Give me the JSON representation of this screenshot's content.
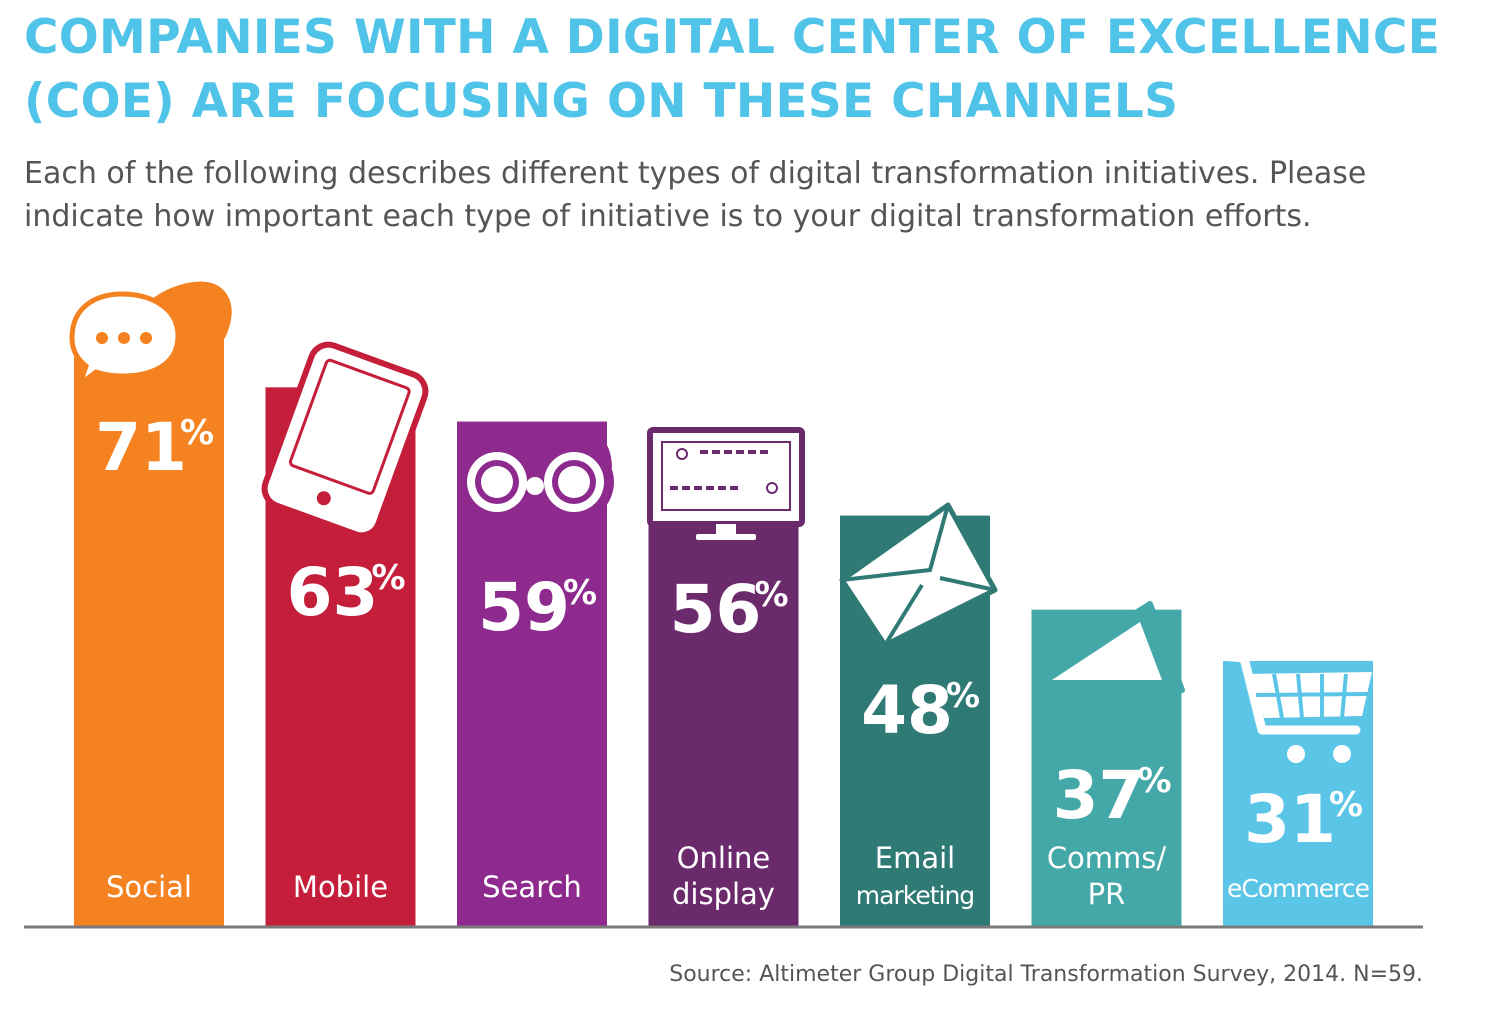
{
  "title_line1": "COMPANIES WITH A DIGITAL CENTER OF EXCELLENCE",
  "title_line2": "(COE) ARE FOCUSING ON THESE CHANNELS",
  "subtitle_line1": "Each of the following describes different types of digital transformation initiatives. Please",
  "subtitle_line2": "indicate how important each type of initiative is to your digital transformation efforts.",
  "source": "Source: Altimeter Group Digital Transformation Survey, 2014. N=59.",
  "colors": {
    "title": "#4fc3e8",
    "text": "#555555",
    "baseline": "#7a7a7a"
  },
  "chart_data": {
    "type": "bar",
    "categories": [
      [
        "Social"
      ],
      [
        "Mobile"
      ],
      [
        "Search"
      ],
      [
        "Online",
        "display"
      ],
      [
        "Email",
        "marketing"
      ],
      [
        "Comms/",
        "PR"
      ],
      [
        "eCommerce"
      ]
    ],
    "values": [
      71,
      63,
      59,
      56,
      48,
      37,
      31
    ],
    "value_suffix": "%",
    "icons": [
      "speech-bubbles-icon",
      "phone-icon",
      "binoculars-icon",
      "monitor-icon",
      "envelope-icon",
      "megaphone-icon",
      "cart-icon"
    ],
    "colors": [
      "#f58220",
      "#c41e3a",
      "#8e2a8e",
      "#6b2a6b",
      "#2f7a75",
      "#44a8a8",
      "#5bc5e8"
    ],
    "ylim": [
      0,
      100
    ],
    "grid": false,
    "legend": "none"
  }
}
